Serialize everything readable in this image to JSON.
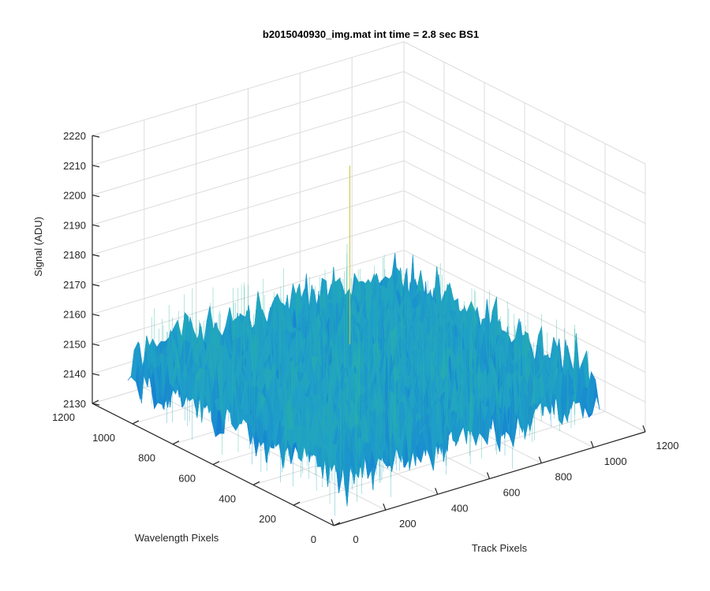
{
  "chart_data": {
    "type": "surface",
    "title": "b2015040930_img.mat int time = 2.8 sec   BS1",
    "xlabel": "Track Pixels",
    "ylabel": "Wavelength Pixels",
    "zlabel": "Signal (ADU)",
    "xlim": [
      0,
      1200
    ],
    "ylim": [
      0,
      1200
    ],
    "zlim": [
      2130,
      2220
    ],
    "xticks": [
      "0",
      "200",
      "400",
      "600",
      "800",
      "1000",
      "1200"
    ],
    "yticks": [
      "0",
      "200",
      "400",
      "600",
      "800",
      "1000",
      "1200"
    ],
    "zticks": [
      "2130",
      "2140",
      "2150",
      "2160",
      "2170",
      "2180",
      "2190",
      "2200",
      "2210",
      "2220"
    ],
    "grid": true,
    "colormap": "parula",
    "surface": {
      "x_range": [
        0,
        1024
      ],
      "y_range": [
        0,
        1024
      ],
      "mean": 2150,
      "noise_range": [
        2135,
        2168
      ],
      "max_spike": 2210
    },
    "colors": {
      "low": "#0d5fe0",
      "mid": "#1fa0c8",
      "high": "#2cb89a",
      "peak": "#c8c83a"
    }
  }
}
